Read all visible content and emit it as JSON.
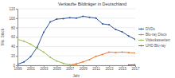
{
  "chart_data": {
    "type": "line",
    "title": "Verkaufte Bildträger in Deutschland",
    "x_label": "Jahr",
    "y_label": "Mio. Stück",
    "x": [
      1999,
      2000,
      2001,
      2002,
      2003,
      2004,
      2005,
      2006,
      2007,
      2008,
      2009,
      2010,
      2011,
      2012,
      2013,
      2014,
      2015,
      2016,
      2017
    ],
    "series": [
      {
        "name": "DVDs",
        "color": "#2f5597",
        "marker": "circle",
        "values": [
          2,
          7,
          18,
          38,
          70,
          92,
          98,
          99,
          101,
          100,
          104,
          102,
          100,
          88,
          86,
          76,
          71,
          62,
          55
        ]
      },
      {
        "name": "Blu-ray Discs",
        "color": "#ed7d31",
        "marker": "circle",
        "values": [
          null,
          null,
          null,
          null,
          null,
          null,
          null,
          null,
          0.5,
          3,
          7,
          12,
          19,
          23,
          28,
          27,
          28,
          27,
          26
        ]
      },
      {
        "name": "Videokassetten",
        "color": "#9bbb59",
        "marker": "circle",
        "values": [
          55,
          51,
          45,
          36,
          28,
          17,
          9,
          4,
          1,
          0,
          null,
          null,
          null,
          null,
          null,
          null,
          null,
          null,
          null
        ]
      },
      {
        "name": "UHD Blu-ray",
        "color": "#c0504d",
        "marker": "circle",
        "values": [
          null,
          null,
          null,
          null,
          null,
          null,
          null,
          null,
          null,
          null,
          null,
          null,
          null,
          null,
          null,
          null,
          null,
          0.6,
          1.4
        ]
      }
    ],
    "xlim": [
      1999,
      2017
    ],
    "xticks": [
      1999,
      2001,
      2003,
      2005,
      2007,
      2009,
      2011,
      2013,
      2015,
      2017
    ],
    "ylim": [
      0,
      120
    ],
    "yticks": [
      0,
      20,
      40,
      60,
      80,
      100,
      120
    ],
    "grid": true,
    "legend": "right"
  }
}
